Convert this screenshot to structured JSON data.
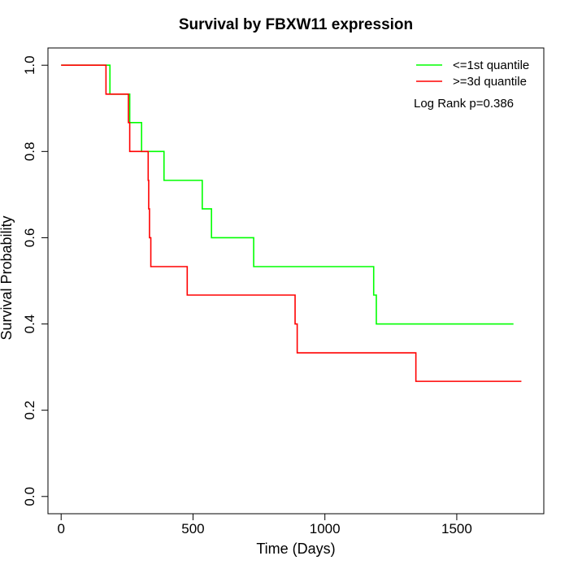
{
  "chart_data": {
    "type": "line",
    "title": "Survival by FBXW11 expression",
    "xlabel": "Time (Days)",
    "ylabel": "Survival Probability",
    "xlim": [
      -50,
      1830
    ],
    "ylim": [
      -0.04,
      1.04
    ],
    "xticks": [
      0,
      500,
      1000,
      1500
    ],
    "yticks": [
      0.0,
      0.2,
      0.4,
      0.6,
      0.8,
      1.0
    ],
    "xtick_labels": [
      "0",
      "500",
      "1000",
      "1500"
    ],
    "ytick_labels": [
      "0.0",
      "0.2",
      "0.4",
      "0.6",
      "0.8",
      "1.0"
    ],
    "grid": false,
    "legend_position": "top-right",
    "step": true,
    "series": [
      {
        "name": "<=1st quantile",
        "color": "#00ff00",
        "x": [
          0,
          185,
          260,
          305,
          390,
          535,
          570,
          730,
          1185,
          1195,
          1715
        ],
        "y": [
          1.0,
          0.933,
          0.867,
          0.8,
          0.733,
          0.667,
          0.6,
          0.533,
          0.467,
          0.4,
          0.4
        ]
      },
      {
        "name": ">=3d quantile",
        "color": "#ff0000",
        "x": [
          0,
          170,
          255,
          260,
          330,
          332,
          335,
          340,
          478,
          887,
          895,
          1345,
          1745
        ],
        "y": [
          1.0,
          0.933,
          0.867,
          0.8,
          0.733,
          0.667,
          0.6,
          0.533,
          0.467,
          0.4,
          0.333,
          0.267,
          0.267
        ]
      }
    ],
    "annotation": "Log Rank p=0.386"
  }
}
